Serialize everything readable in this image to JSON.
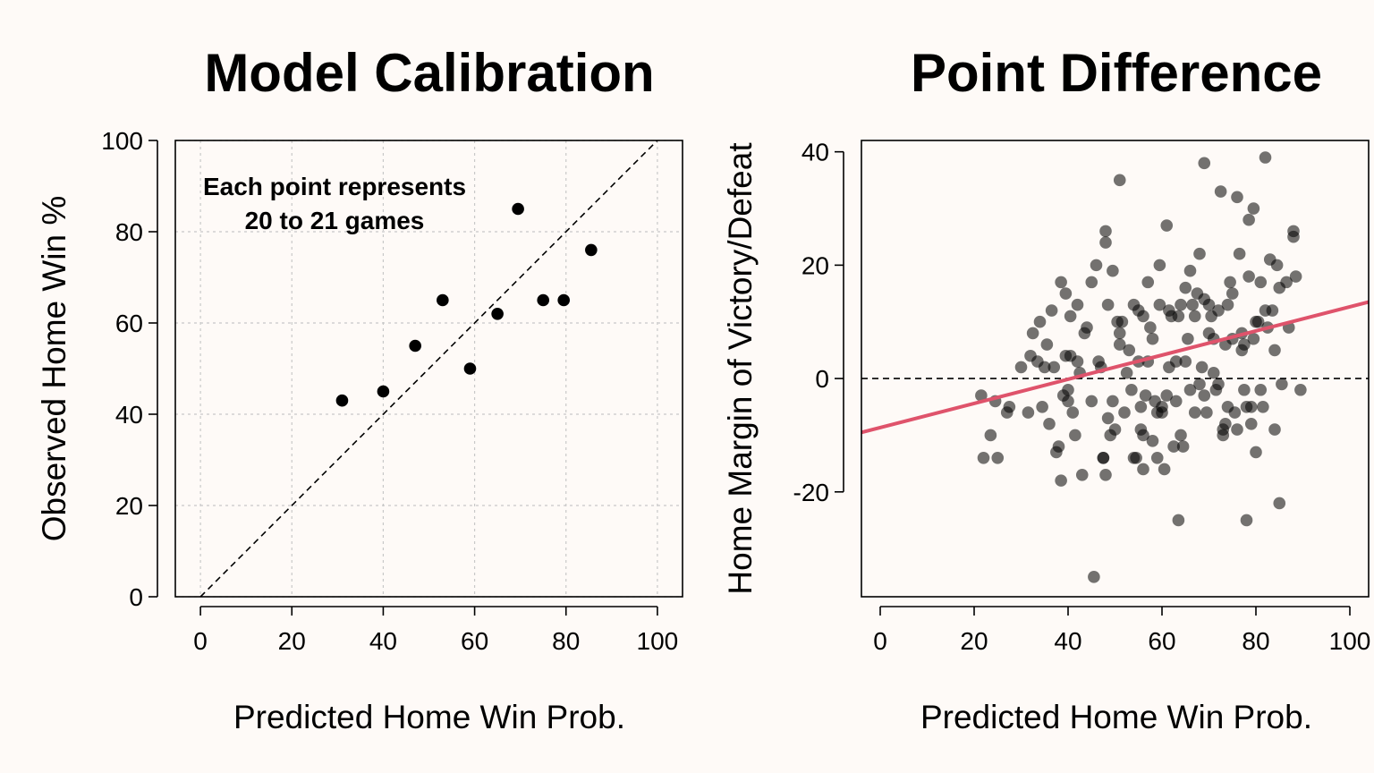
{
  "chart_data": [
    {
      "type": "scatter",
      "title": "Model Calibration",
      "xlabel": "Predicted Home Win Prob.",
      "ylabel": "Observed Home Win %",
      "xlim": [
        -5.5,
        105.5
      ],
      "ylim": [
        0,
        100
      ],
      "xticks": [
        0,
        20,
        40,
        60,
        80,
        100
      ],
      "yticks": [
        0,
        20,
        40,
        60,
        80,
        100
      ],
      "grid": true,
      "annotation": [
        "Each point represents",
        "20 to 21 games"
      ],
      "reference_line": "y = x (dashed)",
      "point_color": "#000000",
      "points": [
        {
          "x": 31,
          "y": 43
        },
        {
          "x": 40,
          "y": 45
        },
        {
          "x": 47,
          "y": 55
        },
        {
          "x": 53,
          "y": 65
        },
        {
          "x": 59,
          "y": 50
        },
        {
          "x": 65,
          "y": 62
        },
        {
          "x": 69.5,
          "y": 85
        },
        {
          "x": 75,
          "y": 65
        },
        {
          "x": 79.5,
          "y": 65
        },
        {
          "x": 85.5,
          "y": 76
        }
      ]
    },
    {
      "type": "scatter",
      "title": "Point Difference",
      "xlabel": "Predicted Home Win Prob.",
      "ylabel": "Home Margin of Victory/Defeat",
      "xlim": [
        -4,
        104
      ],
      "ylim": [
        -38.5,
        42
      ],
      "xticks": [
        0,
        20,
        40,
        60,
        80,
        100
      ],
      "yticks": [
        -20,
        0,
        20,
        40
      ],
      "grid": false,
      "zero_line": "dashed",
      "point_color": "#000000",
      "point_opacity": 0.55,
      "fit_line": {
        "color": "#df536b",
        "x": [
          -4,
          104
        ],
        "y": [
          -9.5,
          13.5
        ]
      },
      "points": [
        {
          "x": 21.5,
          "y": -3
        },
        {
          "x": 22,
          "y": -14
        },
        {
          "x": 23.5,
          "y": -10
        },
        {
          "x": 24.5,
          "y": -4
        },
        {
          "x": 25,
          "y": -14
        },
        {
          "x": 27,
          "y": -6
        },
        {
          "x": 27.5,
          "y": -5
        },
        {
          "x": 30,
          "y": 2
        },
        {
          "x": 31.5,
          "y": -6
        },
        {
          "x": 32,
          "y": 4
        },
        {
          "x": 32.5,
          "y": 8
        },
        {
          "x": 33.5,
          "y": 3
        },
        {
          "x": 34,
          "y": 10
        },
        {
          "x": 34.5,
          "y": -5
        },
        {
          "x": 35,
          "y": 2
        },
        {
          "x": 35.5,
          "y": 6
        },
        {
          "x": 36,
          "y": -8
        },
        {
          "x": 36.5,
          "y": 12
        },
        {
          "x": 37,
          "y": 2
        },
        {
          "x": 37.5,
          "y": -13
        },
        {
          "x": 38,
          "y": -12
        },
        {
          "x": 38.5,
          "y": 17
        },
        {
          "x": 38.5,
          "y": -18
        },
        {
          "x": 39,
          "y": -3
        },
        {
          "x": 39.5,
          "y": 4
        },
        {
          "x": 39.5,
          "y": 15
        },
        {
          "x": 40,
          "y": -2
        },
        {
          "x": 40,
          "y": -4
        },
        {
          "x": 40.5,
          "y": 4
        },
        {
          "x": 40.5,
          "y": 11
        },
        {
          "x": 41,
          "y": -6
        },
        {
          "x": 41.5,
          "y": -10
        },
        {
          "x": 42,
          "y": 13
        },
        {
          "x": 42,
          "y": 3
        },
        {
          "x": 42.5,
          "y": 1
        },
        {
          "x": 43,
          "y": -17
        },
        {
          "x": 43.5,
          "y": 8
        },
        {
          "x": 44,
          "y": 9
        },
        {
          "x": 45,
          "y": -4
        },
        {
          "x": 45.5,
          "y": -35
        },
        {
          "x": 45,
          "y": 17
        },
        {
          "x": 46,
          "y": 20
        },
        {
          "x": 46.5,
          "y": 3
        },
        {
          "x": 47,
          "y": 2
        },
        {
          "x": 47.5,
          "y": -14
        },
        {
          "x": 47.5,
          "y": -14
        },
        {
          "x": 48,
          "y": 24
        },
        {
          "x": 48,
          "y": 26
        },
        {
          "x": 48,
          "y": -17
        },
        {
          "x": 48.5,
          "y": 13
        },
        {
          "x": 48.5,
          "y": -7
        },
        {
          "x": 49,
          "y": -10
        },
        {
          "x": 49.5,
          "y": 19
        },
        {
          "x": 49.5,
          "y": -4
        },
        {
          "x": 50,
          "y": -9
        },
        {
          "x": 50.5,
          "y": 10
        },
        {
          "x": 51,
          "y": 6
        },
        {
          "x": 51,
          "y": 35
        },
        {
          "x": 51,
          "y": 8
        },
        {
          "x": 51.5,
          "y": 10
        },
        {
          "x": 52,
          "y": -6
        },
        {
          "x": 52.5,
          "y": 1
        },
        {
          "x": 53,
          "y": 5
        },
        {
          "x": 53.5,
          "y": -2
        },
        {
          "x": 54,
          "y": -14
        },
        {
          "x": 54,
          "y": 13
        },
        {
          "x": 54.5,
          "y": -14
        },
        {
          "x": 55,
          "y": 12
        },
        {
          "x": 55,
          "y": 3
        },
        {
          "x": 55.5,
          "y": -9
        },
        {
          "x": 55.5,
          "y": -5
        },
        {
          "x": 56,
          "y": 11
        },
        {
          "x": 56,
          "y": -16
        },
        {
          "x": 56,
          "y": -10
        },
        {
          "x": 56.5,
          "y": -3
        },
        {
          "x": 57,
          "y": 17
        },
        {
          "x": 57,
          "y": 3
        },
        {
          "x": 57.5,
          "y": 9
        },
        {
          "x": 58,
          "y": -11
        },
        {
          "x": 58,
          "y": 7
        },
        {
          "x": 58.5,
          "y": -4
        },
        {
          "x": 59,
          "y": -14
        },
        {
          "x": 59,
          "y": -6
        },
        {
          "x": 59.5,
          "y": 20
        },
        {
          "x": 59.5,
          "y": 13
        },
        {
          "x": 60,
          "y": -5
        },
        {
          "x": 60,
          "y": -6
        },
        {
          "x": 60.5,
          "y": -16
        },
        {
          "x": 61,
          "y": -3
        },
        {
          "x": 61,
          "y": 27
        },
        {
          "x": 61.5,
          "y": 2
        },
        {
          "x": 61.5,
          "y": 12
        },
        {
          "x": 62,
          "y": 11
        },
        {
          "x": 62.5,
          "y": -12
        },
        {
          "x": 63,
          "y": 3
        },
        {
          "x": 63,
          "y": -4
        },
        {
          "x": 63.5,
          "y": 11
        },
        {
          "x": 63.5,
          "y": -25
        },
        {
          "x": 64,
          "y": 13
        },
        {
          "x": 64,
          "y": -10
        },
        {
          "x": 64.5,
          "y": -12
        },
        {
          "x": 65,
          "y": 16
        },
        {
          "x": 65,
          "y": 3
        },
        {
          "x": 65.5,
          "y": 7
        },
        {
          "x": 66,
          "y": -2
        },
        {
          "x": 66,
          "y": 19
        },
        {
          "x": 66.5,
          "y": 13
        },
        {
          "x": 67,
          "y": -6
        },
        {
          "x": 67,
          "y": 11
        },
        {
          "x": 67.5,
          "y": 15
        },
        {
          "x": 68,
          "y": 22
        },
        {
          "x": 68,
          "y": -1
        },
        {
          "x": 68.5,
          "y": 2
        },
        {
          "x": 69,
          "y": 14
        },
        {
          "x": 69,
          "y": 38
        },
        {
          "x": 69,
          "y": -3
        },
        {
          "x": 69.5,
          "y": -6
        },
        {
          "x": 70,
          "y": 13
        },
        {
          "x": 70,
          "y": 8
        },
        {
          "x": 70.5,
          "y": 11
        },
        {
          "x": 71,
          "y": 7
        },
        {
          "x": 71,
          "y": 1
        },
        {
          "x": 71.5,
          "y": -2
        },
        {
          "x": 72,
          "y": -1
        },
        {
          "x": 72,
          "y": 12
        },
        {
          "x": 72.5,
          "y": 33
        },
        {
          "x": 73,
          "y": -9
        },
        {
          "x": 73,
          "y": -10
        },
        {
          "x": 73.5,
          "y": -8
        },
        {
          "x": 73.5,
          "y": 6
        },
        {
          "x": 74,
          "y": -5
        },
        {
          "x": 74,
          "y": 13
        },
        {
          "x": 74.5,
          "y": 17
        },
        {
          "x": 75,
          "y": 15
        },
        {
          "x": 75,
          "y": 7
        },
        {
          "x": 75.5,
          "y": -6
        },
        {
          "x": 76,
          "y": 32
        },
        {
          "x": 76,
          "y": -9
        },
        {
          "x": 76.5,
          "y": 22
        },
        {
          "x": 77,
          "y": 8
        },
        {
          "x": 77,
          "y": 5
        },
        {
          "x": 77.5,
          "y": 6
        },
        {
          "x": 77.5,
          "y": -2
        },
        {
          "x": 78,
          "y": -5
        },
        {
          "x": 78,
          "y": -25
        },
        {
          "x": 78.5,
          "y": 18
        },
        {
          "x": 78.5,
          "y": 28
        },
        {
          "x": 79,
          "y": -8
        },
        {
          "x": 79,
          "y": -5
        },
        {
          "x": 79.5,
          "y": 30
        },
        {
          "x": 79.5,
          "y": 7
        },
        {
          "x": 80,
          "y": 10
        },
        {
          "x": 80,
          "y": -13
        },
        {
          "x": 80.5,
          "y": 10
        },
        {
          "x": 81,
          "y": -2
        },
        {
          "x": 81,
          "y": 17
        },
        {
          "x": 81.5,
          "y": -5
        },
        {
          "x": 82,
          "y": 39
        },
        {
          "x": 82,
          "y": 12
        },
        {
          "x": 82.5,
          "y": 9
        },
        {
          "x": 83,
          "y": 21
        },
        {
          "x": 83.5,
          "y": 12
        },
        {
          "x": 84,
          "y": -9
        },
        {
          "x": 84,
          "y": 5
        },
        {
          "x": 84.5,
          "y": 20
        },
        {
          "x": 85,
          "y": -22
        },
        {
          "x": 85,
          "y": 16
        },
        {
          "x": 85.5,
          "y": -1
        },
        {
          "x": 86.5,
          "y": 17
        },
        {
          "x": 87,
          "y": 9
        },
        {
          "x": 88,
          "y": 25
        },
        {
          "x": 88,
          "y": 26
        },
        {
          "x": 88.5,
          "y": 18
        },
        {
          "x": 89.5,
          "y": -2
        }
      ]
    }
  ]
}
